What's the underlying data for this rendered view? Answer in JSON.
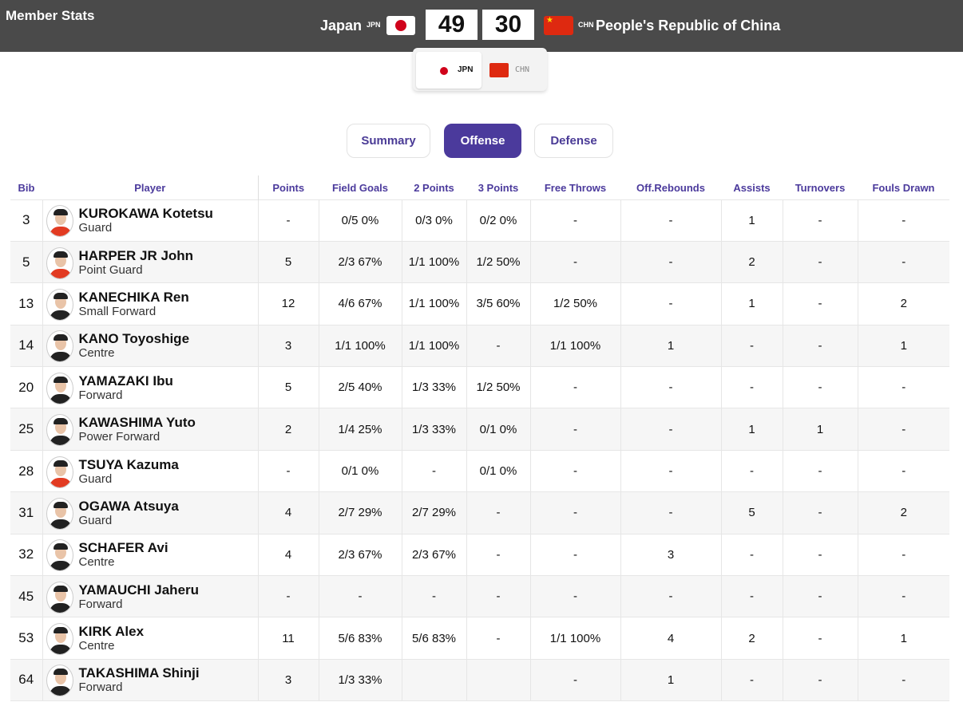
{
  "page_title": "Member Stats",
  "scoreboard": {
    "home": {
      "name": "Japan",
      "abbr": "JPN",
      "score": "49"
    },
    "away": {
      "name": "People's Republic of China",
      "abbr": "CHN",
      "score": "30"
    }
  },
  "team_switch": {
    "active": "JPN",
    "inactive": "CHN"
  },
  "tabs": [
    {
      "label": "Summary"
    },
    {
      "label": "Offense"
    },
    {
      "label": "Defense"
    }
  ],
  "table": {
    "headers": [
      "Bib",
      "Player",
      "Points",
      "Field Goals",
      "2 Points",
      "3 Points",
      "Free Throws",
      "Off.Rebounds",
      "Assists",
      "Turnovers",
      "Fouls Drawn"
    ],
    "rows": [
      {
        "bib": "3",
        "name": "KUROKAWA Kotetsu",
        "position": "Guard",
        "points": "-",
        "fg": "0/5 0%",
        "p2": "0/3 0%",
        "p3": "0/2 0%",
        "ft": "-",
        "oreb": "-",
        "ast": "1",
        "to": "-",
        "fd": "-",
        "shirt": "red"
      },
      {
        "bib": "5",
        "name": "HARPER JR John",
        "position": "Point Guard",
        "points": "5",
        "fg": "2/3 67%",
        "p2": "1/1 100%",
        "p3": "1/2 50%",
        "ft": "-",
        "oreb": "-",
        "ast": "2",
        "to": "-",
        "fd": "-",
        "shirt": "red"
      },
      {
        "bib": "13",
        "name": "KANECHIKA Ren",
        "position": "Small Forward",
        "points": "12",
        "fg": "4/6 67%",
        "p2": "1/1 100%",
        "p3": "3/5 60%",
        "ft": "1/2 50%",
        "oreb": "-",
        "ast": "1",
        "to": "-",
        "fd": "2",
        "shirt": "black"
      },
      {
        "bib": "14",
        "name": "KANO Toyoshige",
        "position": "Centre",
        "points": "3",
        "fg": "1/1 100%",
        "p2": "1/1 100%",
        "p3": "-",
        "ft": "1/1 100%",
        "oreb": "1",
        "ast": "-",
        "to": "-",
        "fd": "1",
        "shirt": "black"
      },
      {
        "bib": "20",
        "name": "YAMAZAKI Ibu",
        "position": "Forward",
        "points": "5",
        "fg": "2/5 40%",
        "p2": "1/3 33%",
        "p3": "1/2 50%",
        "ft": "-",
        "oreb": "-",
        "ast": "-",
        "to": "-",
        "fd": "-",
        "shirt": "black"
      },
      {
        "bib": "25",
        "name": "KAWASHIMA Yuto",
        "position": "Power Forward",
        "points": "2",
        "fg": "1/4 25%",
        "p2": "1/3 33%",
        "p3": "0/1 0%",
        "ft": "-",
        "oreb": "-",
        "ast": "1",
        "to": "1",
        "fd": "-",
        "shirt": "black"
      },
      {
        "bib": "28",
        "name": "TSUYA Kazuma",
        "position": "Guard",
        "points": "-",
        "fg": "0/1 0%",
        "p2": "-",
        "p3": "0/1 0%",
        "ft": "-",
        "oreb": "-",
        "ast": "-",
        "to": "-",
        "fd": "-",
        "shirt": "red"
      },
      {
        "bib": "31",
        "name": "OGAWA Atsuya",
        "position": "Guard",
        "points": "4",
        "fg": "2/7 29%",
        "p2": "2/7 29%",
        "p3": "-",
        "ft": "-",
        "oreb": "-",
        "ast": "5",
        "to": "-",
        "fd": "2",
        "shirt": "black"
      },
      {
        "bib": "32",
        "name": "SCHAFER Avi",
        "position": "Centre",
        "points": "4",
        "fg": "2/3 67%",
        "p2": "2/3 67%",
        "p3": "-",
        "ft": "-",
        "oreb": "3",
        "ast": "-",
        "to": "-",
        "fd": "-",
        "shirt": "black"
      },
      {
        "bib": "45",
        "name": "YAMAUCHI Jaheru",
        "position": "Forward",
        "points": "-",
        "fg": "-",
        "p2": "-",
        "p3": "-",
        "ft": "-",
        "oreb": "-",
        "ast": "-",
        "to": "-",
        "fd": "-",
        "shirt": "black"
      },
      {
        "bib": "53",
        "name": "KIRK Alex",
        "position": "Centre",
        "points": "11",
        "fg": "5/6 83%",
        "p2": "5/6 83%",
        "p3": "-",
        "ft": "1/1 100%",
        "oreb": "4",
        "ast": "2",
        "to": "-",
        "fd": "1",
        "shirt": "black"
      },
      {
        "bib": "64",
        "name": "TAKASHIMA Shinji",
        "position": "Forward",
        "points": "3",
        "fg": "1/3 33%",
        "p2": "",
        "p3": "",
        "ft": "-",
        "oreb": "1",
        "ast": "-",
        "to": "-",
        "fd": "-",
        "shirt": "black"
      }
    ]
  },
  "colors": {
    "header_bg": "#4a4a4a",
    "accent": "#4b3a9c",
    "jp_red": "#d0021b",
    "cn_red": "#de2910"
  }
}
